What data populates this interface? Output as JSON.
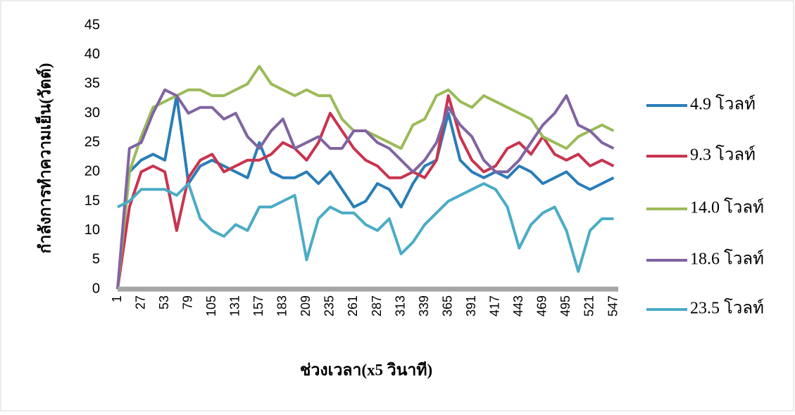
{
  "chart_data": {
    "type": "line",
    "x_label": "ช่วงเวลา(x5 วินาที)",
    "y_label": "กำลังการทำความเย็น(วัตต์)",
    "x": [
      1,
      14,
      27,
      40,
      53,
      66,
      79,
      92,
      105,
      118,
      131,
      144,
      157,
      170,
      183,
      196,
      209,
      222,
      235,
      248,
      261,
      274,
      287,
      300,
      313,
      326,
      339,
      352,
      365,
      378,
      391,
      404,
      417,
      430,
      443,
      456,
      469,
      482,
      495,
      508,
      521,
      534,
      547
    ],
    "xlim": [
      1,
      552
    ],
    "xticks": [
      1,
      27,
      53,
      79,
      105,
      131,
      157,
      183,
      209,
      235,
      261,
      287,
      313,
      339,
      365,
      391,
      417,
      443,
      469,
      495,
      521,
      547
    ],
    "ylim": [
      0,
      45
    ],
    "yticks": [
      0,
      5,
      10,
      15,
      20,
      25,
      30,
      35,
      40,
      45
    ],
    "legend_position": "right",
    "series": [
      {
        "name": "4.9 โวลท์",
        "color": "#2a7db8",
        "values": [
          0,
          20,
          22,
          23,
          22,
          33,
          18,
          21,
          22,
          21,
          20,
          19,
          25,
          20,
          19,
          19,
          20,
          18,
          20,
          17,
          14,
          15,
          18,
          17,
          14,
          18,
          21,
          22,
          30,
          22,
          20,
          19,
          20,
          19,
          21,
          20,
          18,
          19,
          20,
          18,
          17,
          18,
          19
        ]
      },
      {
        "name": "9.3 โวลท์",
        "color": "#c8344f",
        "values": [
          0,
          14,
          20,
          21,
          20,
          10,
          19,
          22,
          23,
          20,
          21,
          22,
          22,
          23,
          25,
          24,
          22,
          25,
          30,
          27,
          24,
          22,
          21,
          19,
          19,
          20,
          19,
          22,
          33,
          26,
          22,
          20,
          21,
          24,
          25,
          23,
          26,
          23,
          22,
          23,
          21,
          22,
          21
        ]
      },
      {
        "name": "14.0 โวลท์",
        "color": "#9bbb59",
        "values": [
          0,
          20,
          26,
          31,
          32,
          33,
          34,
          34,
          33,
          33,
          34,
          35,
          38,
          35,
          34,
          33,
          34,
          33,
          33,
          29,
          27,
          27,
          26,
          25,
          24,
          28,
          29,
          33,
          34,
          32,
          31,
          33,
          32,
          31,
          30,
          29,
          26,
          25,
          24,
          26,
          27,
          28,
          27
        ]
      },
      {
        "name": "18.6 โวลท์",
        "color": "#8064a2",
        "values": [
          0,
          24,
          25,
          30,
          34,
          33,
          30,
          31,
          31,
          29,
          30,
          26,
          24,
          27,
          29,
          24,
          25,
          26,
          24,
          24,
          27,
          27,
          25,
          24,
          22,
          20,
          22,
          25,
          31,
          28,
          26,
          22,
          20,
          20,
          22,
          25,
          28,
          30,
          33,
          28,
          27,
          25,
          24
        ]
      },
      {
        "name": "23.5 โวลท์",
        "color": "#4bacc6",
        "values": [
          14,
          15,
          17,
          17,
          17,
          16,
          18,
          12,
          10,
          9,
          11,
          10,
          14,
          14,
          15,
          16,
          5,
          12,
          14,
          13,
          13,
          11,
          10,
          12,
          6,
          8,
          11,
          13,
          15,
          16,
          17,
          18,
          17,
          14,
          7,
          11,
          13,
          14,
          10,
          3,
          10,
          12,
          12
        ]
      }
    ]
  }
}
